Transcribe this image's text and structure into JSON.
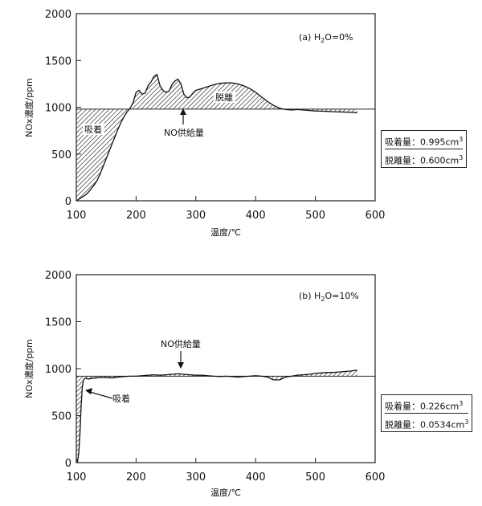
{
  "chart_data": [
    {
      "type": "area",
      "title": "(a) H2O=0%",
      "title_main": "(a) H",
      "title_sub": "2",
      "title_tail": "O=0%",
      "xlabel": "温度/℃",
      "ylabel": "NOx濃度/ppm",
      "xlim": [
        100,
        600
      ],
      "ylim": [
        0,
        2000
      ],
      "xticks": [
        "100",
        "200",
        "300",
        "400",
        "500",
        "600"
      ],
      "yticks": [
        "0",
        "500",
        "1000",
        "1500",
        "2000"
      ],
      "grid": false,
      "supply_level": 980,
      "series": [
        {
          "x": [
            100,
            105,
            110,
            115,
            120,
            125,
            130,
            135,
            140,
            145,
            150,
            155,
            160,
            165,
            170,
            175,
            180,
            185,
            190,
            195,
            200,
            205,
            210,
            215,
            220,
            225,
            230,
            235,
            240,
            245,
            250,
            255,
            260,
            265,
            270,
            275,
            280,
            285,
            290,
            295,
            300,
            310,
            320,
            330,
            340,
            350,
            360,
            370,
            380,
            390,
            400,
            410,
            420,
            430,
            440,
            450,
            460,
            470,
            480,
            490,
            500,
            510,
            520,
            530,
            540,
            550,
            560,
            570
          ],
          "values": [
            0,
            20,
            40,
            60,
            90,
            130,
            170,
            220,
            290,
            370,
            450,
            530,
            610,
            690,
            770,
            840,
            900,
            950,
            990,
            1050,
            1160,
            1180,
            1140,
            1150,
            1230,
            1270,
            1330,
            1350,
            1230,
            1180,
            1160,
            1170,
            1240,
            1280,
            1300,
            1250,
            1140,
            1100,
            1110,
            1150,
            1180,
            1200,
            1220,
            1240,
            1255,
            1260,
            1260,
            1250,
            1230,
            1200,
            1160,
            1110,
            1060,
            1020,
            990,
            975,
            970,
            975,
            970,
            965,
            960,
            958,
            955,
            952,
            950,
            948,
            945,
            940
          ]
        }
      ],
      "annotations": {
        "adsorption": "吸着",
        "desorption": "脱離",
        "supply": "NO供給量"
      },
      "results": {
        "adsorbed_label": "吸着量：0.995cm",
        "desorbed_label": "脱離量：0.600cm",
        "unit_exp": "3"
      }
    },
    {
      "type": "area",
      "title": "(b) H2O=10%",
      "title_main": "(b) H",
      "title_sub": "2",
      "title_tail": "O=10%",
      "xlabel": "温度/℃",
      "ylabel": "NOx濃度/ppm",
      "xlim": [
        100,
        600
      ],
      "ylim": [
        0,
        2000
      ],
      "xticks": [
        "100",
        "200",
        "300",
        "400",
        "500",
        "600"
      ],
      "yticks": [
        "0",
        "500",
        "1000",
        "1500",
        "2000"
      ],
      "grid": false,
      "supply_level": 920,
      "series": [
        {
          "x": [
            100,
            102,
            104,
            106,
            108,
            110,
            112,
            115,
            120,
            130,
            140,
            150,
            160,
            170,
            180,
            190,
            200,
            210,
            220,
            230,
            240,
            250,
            260,
            270,
            280,
            290,
            300,
            310,
            320,
            330,
            340,
            350,
            360,
            370,
            380,
            390,
            400,
            410,
            420,
            430,
            440,
            450,
            460,
            470,
            480,
            490,
            500,
            510,
            520,
            530,
            540,
            550,
            560,
            570
          ],
          "values": [
            30,
            10,
            100,
            300,
            600,
            800,
            880,
            900,
            890,
            900,
            905,
            905,
            900,
            910,
            915,
            920,
            920,
            925,
            930,
            935,
            930,
            935,
            940,
            945,
            940,
            935,
            930,
            930,
            925,
            920,
            915,
            920,
            915,
            910,
            915,
            920,
            925,
            920,
            910,
            880,
            880,
            910,
            920,
            930,
            935,
            940,
            950,
            955,
            960,
            960,
            965,
            970,
            975,
            985
          ]
        }
      ],
      "annotations": {
        "adsorption": "吸着",
        "supply": "NO供給量"
      },
      "results": {
        "adsorbed_label": "吸着量：0.226cm",
        "desorbed_label": "脱離量：0.0534cm",
        "unit_exp": "3"
      }
    }
  ]
}
